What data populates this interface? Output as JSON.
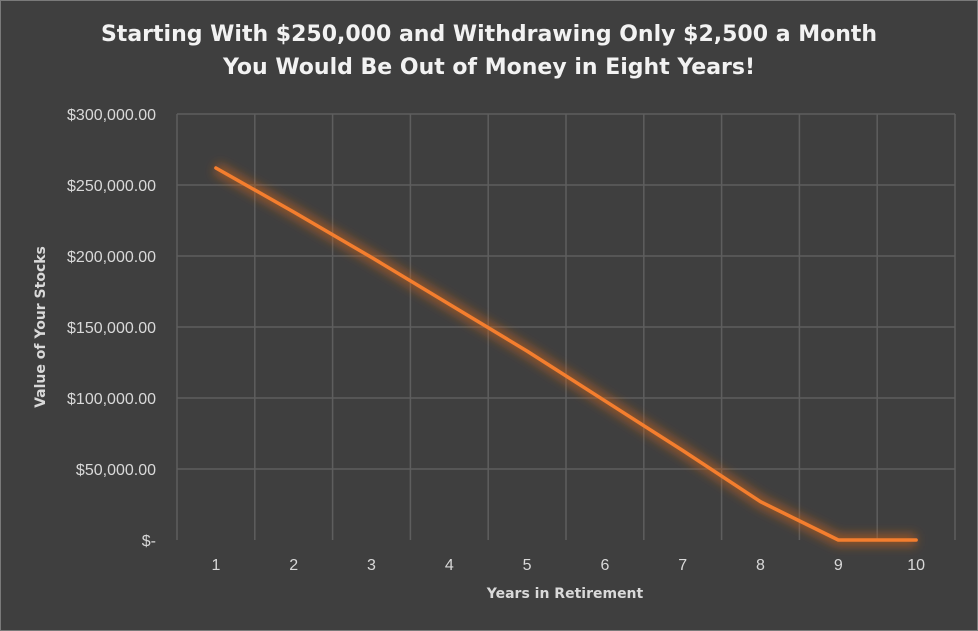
{
  "chart_data": {
    "type": "line",
    "title_lines": [
      "Starting With $250,000 and Withdrawing Only $2,500 a Month",
      "You Would Be Out of Money in Eight Years!"
    ],
    "xlabel": "Years in Retirement",
    "ylabel": "Value of Your Stocks",
    "categories": [
      "1",
      "2",
      "3",
      "4",
      "5",
      "6",
      "7",
      "8",
      "9",
      "10"
    ],
    "series": [
      {
        "values": [
          262000,
          231000,
          199000,
          166000,
          133000,
          98000,
          63000,
          27000,
          0,
          0
        ]
      }
    ],
    "ylim": [
      0,
      300000
    ],
    "yticks": [
      0,
      50000,
      100000,
      150000,
      200000,
      250000,
      300000
    ],
    "ytick_labels": [
      "$-",
      "$50,000.00",
      "$100,000.00",
      "$150,000.00",
      "$200,000.00",
      "$250,000.00",
      "$300,000.00"
    ],
    "grid": true,
    "legend": "none",
    "colors": {
      "line": "#f47e2e",
      "glow": "#c8641e",
      "grid": "#5e5e5e",
      "background": "#3f3f3f",
      "text": "#d9d9d9"
    }
  }
}
